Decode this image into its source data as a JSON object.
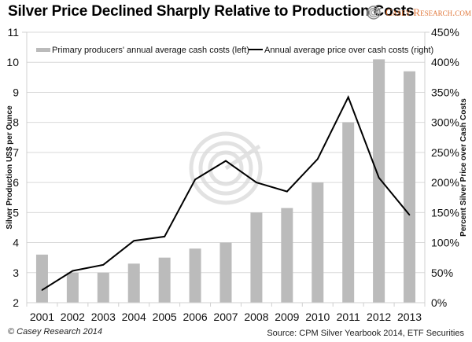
{
  "header": {
    "title": "Silver Price Declined Sharply Relative to Production Costs",
    "logo_text": "Casey Research.com",
    "logo_icon": "casey-spiral-logo-icon"
  },
  "footer": {
    "copyright": "© Casey Research 2014",
    "source": "Source:  CPM Silver Yearbook 2014, ETF Securities"
  },
  "colors": {
    "bar": "#bbbbbb",
    "line": "#000000",
    "grid": "#d9d9d9",
    "logo_accent": "#e0773a"
  },
  "chart_data": {
    "type": "bar+line",
    "title": "Silver Price Declined Sharply Relative to Production Costs",
    "categories": [
      "2001",
      "2002",
      "2003",
      "2004",
      "2005",
      "2006",
      "2007",
      "2008",
      "2009",
      "2010",
      "2011",
      "2012",
      "2013"
    ],
    "series": [
      {
        "name": "Primary producers' annual average cash costs (left)",
        "type": "bar",
        "axis": "left",
        "values": [
          3.6,
          3.0,
          3.0,
          3.3,
          3.5,
          3.8,
          4.0,
          5.0,
          5.15,
          6.0,
          8.0,
          10.1,
          9.7
        ]
      },
      {
        "name": "Annual average price over cash costs (right)",
        "type": "line",
        "axis": "right",
        "values": [
          21,
          53,
          63,
          103,
          110,
          205,
          236,
          200,
          185,
          239,
          342,
          208,
          146
        ]
      }
    ],
    "ylabel": "Silver Production US$ per Ounce",
    "y2label": "Percent Silver Price over Cash Costs",
    "xlabel": "",
    "ylim": [
      2,
      11
    ],
    "yticks": [
      "2",
      "3",
      "4",
      "5",
      "6",
      "7",
      "8",
      "9",
      "10",
      "11"
    ],
    "y2lim": [
      0,
      450
    ],
    "y2ticks": [
      "0%",
      "50%",
      "100%",
      "150%",
      "200%",
      "250%",
      "300%",
      "350%",
      "400%",
      "450%"
    ],
    "grid": true,
    "legend": "top"
  }
}
